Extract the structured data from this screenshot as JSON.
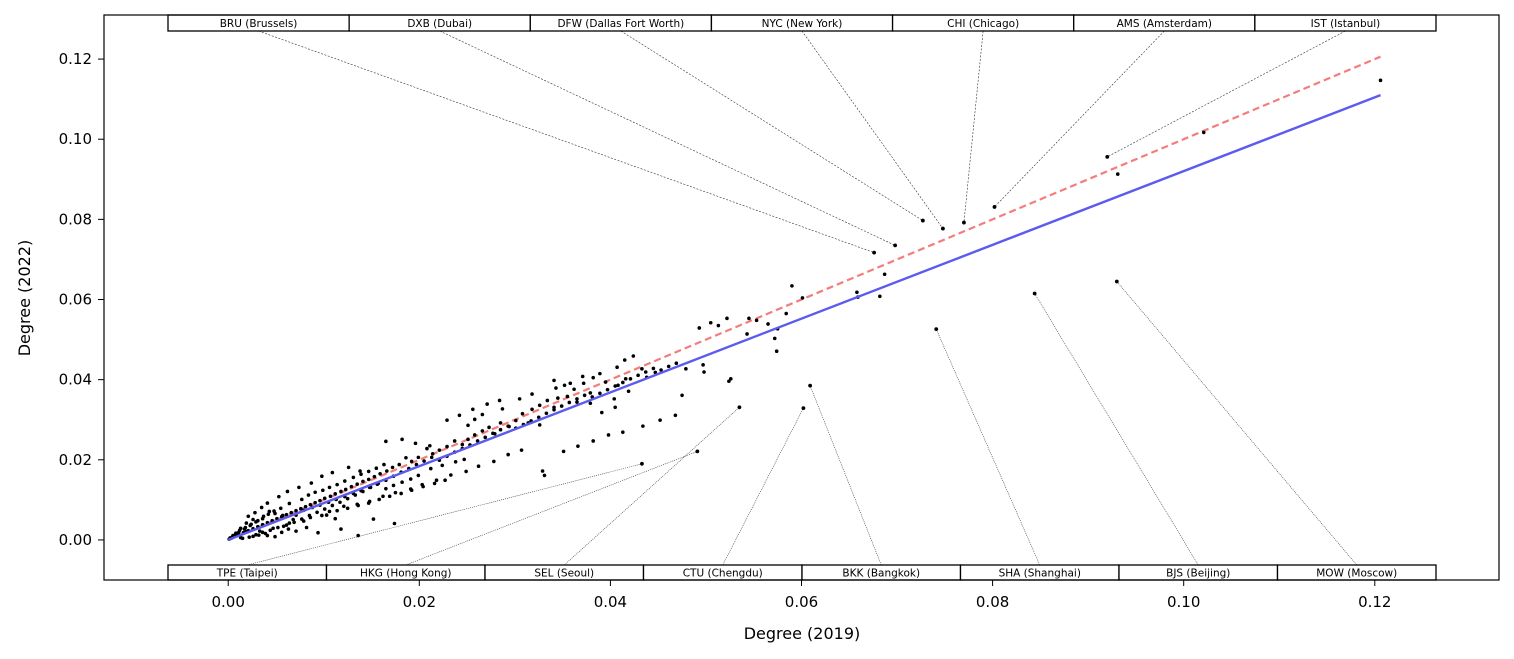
{
  "chart_data": {
    "type": "scatter",
    "title": "",
    "xlabel": "Degree (2019)",
    "ylabel": "Degree (2022)",
    "xlim": [
      -0.013,
      0.133
    ],
    "ylim": [
      -0.01,
      0.131
    ],
    "x_ticks": [
      0.0,
      0.02,
      0.04,
      0.06,
      0.08,
      0.1,
      0.12
    ],
    "x_tick_labels": [
      "0.00",
      "0.02",
      "0.04",
      "0.06",
      "0.08",
      "0.10",
      "0.12"
    ],
    "y_ticks": [
      0.0,
      0.02,
      0.04,
      0.06,
      0.08,
      0.1,
      0.12
    ],
    "y_tick_labels": [
      "0.00",
      "0.02",
      "0.04",
      "0.06",
      "0.08",
      "0.10",
      "0.12"
    ],
    "grid": false,
    "colors": {
      "points": "#000000",
      "fit_line": "#5b5bf0",
      "identity_line": "#f47c7c",
      "leader": "#333333"
    },
    "lines": [
      {
        "style": "dashed",
        "color": "#f47c7c",
        "x": [
          0.0,
          0.1206
        ],
        "y": [
          0.0,
          0.1206
        ]
      },
      {
        "style": "solid",
        "color": "#5b5bf0",
        "x": [
          0.0,
          0.1206
        ],
        "y": [
          0.0,
          0.111
        ]
      }
    ],
    "labeled_points": [
      {
        "label": "BRU (Brussels)",
        "x": 0.0676,
        "y": 0.0717,
        "position": "top"
      },
      {
        "label": "DXB (Dubai)",
        "x": 0.0698,
        "y": 0.0735,
        "position": "top"
      },
      {
        "label": "DFW (Dallas Fort Worth)",
        "x": 0.0727,
        "y": 0.0797,
        "position": "top"
      },
      {
        "label": "NYC (New York)",
        "x": 0.0748,
        "y": 0.0777,
        "position": "top"
      },
      {
        "label": "CHI (Chicago)",
        "x": 0.077,
        "y": 0.0792,
        "position": "top"
      },
      {
        "label": "AMS (Amsterdam)",
        "x": 0.0802,
        "y": 0.0831,
        "position": "top"
      },
      {
        "label": "IST (Istanbul)",
        "x": 0.092,
        "y": 0.0956,
        "position": "top"
      },
      {
        "label": "TPE (Taipei)",
        "x": 0.0433,
        "y": 0.019,
        "position": "bottom"
      },
      {
        "label": "HKG (Hong Kong)",
        "x": 0.0491,
        "y": 0.0221,
        "position": "bottom"
      },
      {
        "label": "SEL (Seoul)",
        "x": 0.0535,
        "y": 0.0331,
        "position": "bottom"
      },
      {
        "label": "CTU (Chengdu)",
        "x": 0.0602,
        "y": 0.0329,
        "position": "bottom"
      },
      {
        "label": "BKK (Bangkok)",
        "x": 0.0609,
        "y": 0.0385,
        "position": "bottom"
      },
      {
        "label": "SHA (Shanghai)",
        "x": 0.0741,
        "y": 0.0526,
        "position": "bottom"
      },
      {
        "label": "BJS (Beijing)",
        "x": 0.0844,
        "y": 0.0615,
        "position": "bottom"
      },
      {
        "label": "MOW (Moscow)",
        "x": 0.093,
        "y": 0.0645,
        "position": "bottom"
      }
    ],
    "points": [
      [
        0.1206,
        0.1147
      ],
      [
        0.1021,
        0.1017
      ],
      [
        0.0931,
        0.0913
      ],
      [
        0.0687,
        0.0663
      ],
      [
        0.0658,
        0.0618
      ],
      [
        0.0659,
        0.0606
      ],
      [
        0.0682,
        0.0608
      ],
      [
        0.059,
        0.0634
      ],
      [
        0.0601,
        0.0604
      ],
      [
        0.0584,
        0.0565
      ],
      [
        0.0553,
        0.0548
      ],
      [
        0.0565,
        0.0539
      ],
      [
        0.0545,
        0.0553
      ],
      [
        0.0522,
        0.0553
      ],
      [
        0.0575,
        0.0527
      ],
      [
        0.0543,
        0.0514
      ],
      [
        0.0572,
        0.0503
      ],
      [
        0.0574,
        0.0471
      ],
      [
        0.0505,
        0.0542
      ],
      [
        0.0493,
        0.0529
      ],
      [
        0.0513,
        0.0535
      ],
      [
        0.0498,
        0.0419
      ],
      [
        0.0497,
        0.0437
      ],
      [
        0.0526,
        0.0402
      ],
      [
        0.0524,
        0.0396
      ],
      [
        0.0479,
        0.0427
      ],
      [
        0.0475,
        0.0361
      ],
      [
        0.0424,
        0.0459
      ],
      [
        0.0415,
        0.0449
      ],
      [
        0.0433,
        0.0427
      ],
      [
        0.0447,
        0.0418
      ],
      [
        0.0438,
        0.0406
      ],
      [
        0.0416,
        0.0402
      ],
      [
        0.0395,
        0.0394
      ],
      [
        0.0408,
        0.0386
      ],
      [
        0.0419,
        0.0371
      ],
      [
        0.0382,
        0.0405
      ],
      [
        0.0372,
        0.0391
      ],
      [
        0.0362,
        0.0376
      ],
      [
        0.0379,
        0.0367
      ],
      [
        0.0355,
        0.0358
      ],
      [
        0.0365,
        0.0344
      ],
      [
        0.0345,
        0.0354
      ],
      [
        0.0334,
        0.0348
      ],
      [
        0.0326,
        0.0336
      ],
      [
        0.0341,
        0.0331
      ],
      [
        0.0318,
        0.0326
      ],
      [
        0.0308,
        0.0315
      ],
      [
        0.0301,
        0.0298
      ],
      [
        0.0314,
        0.0292
      ],
      [
        0.0326,
        0.0287
      ],
      [
        0.0294,
        0.0283
      ],
      [
        0.0285,
        0.0292
      ],
      [
        0.0273,
        0.0281
      ],
      [
        0.0266,
        0.0272
      ],
      [
        0.0279,
        0.0265
      ],
      [
        0.0258,
        0.0262
      ],
      [
        0.0251,
        0.0251
      ],
      [
        0.0245,
        0.0238
      ],
      [
        0.0237,
        0.0247
      ],
      [
        0.0229,
        0.0233
      ],
      [
        0.0221,
        0.0224
      ],
      [
        0.0214,
        0.0215
      ],
      [
        0.0208,
        0.0228
      ],
      [
        0.0199,
        0.0206
      ],
      [
        0.0192,
        0.0196
      ],
      [
        0.0186,
        0.0205
      ],
      [
        0.0179,
        0.0188
      ],
      [
        0.0172,
        0.0181
      ],
      [
        0.0166,
        0.0172
      ],
      [
        0.0159,
        0.0165
      ],
      [
        0.0153,
        0.0158
      ],
      [
        0.0147,
        0.0151
      ],
      [
        0.0141,
        0.0146
      ],
      [
        0.0135,
        0.0139
      ],
      [
        0.0129,
        0.0133
      ],
      [
        0.0123,
        0.0126
      ],
      [
        0.0118,
        0.0121
      ],
      [
        0.0112,
        0.0115
      ],
      [
        0.0107,
        0.0109
      ],
      [
        0.0101,
        0.0104
      ],
      [
        0.0096,
        0.0098
      ],
      [
        0.0091,
        0.0093
      ],
      [
        0.0086,
        0.0088
      ],
      [
        0.0081,
        0.0083
      ],
      [
        0.0076,
        0.0078
      ],
      [
        0.0071,
        0.0073
      ],
      [
        0.0066,
        0.0068
      ],
      [
        0.0061,
        0.0063
      ],
      [
        0.0056,
        0.0058
      ],
      [
        0.0051,
        0.0053
      ],
      [
        0.0046,
        0.0048
      ],
      [
        0.0041,
        0.0043
      ],
      [
        0.0036,
        0.0038
      ],
      [
        0.0031,
        0.0033
      ],
      [
        0.0026,
        0.0028
      ],
      [
        0.0021,
        0.0023
      ],
      [
        0.0016,
        0.0018
      ],
      [
        0.0011,
        0.0013
      ],
      [
        0.0006,
        0.0008
      ],
      [
        0.0003,
        0.0004
      ],
      [
        0.0001,
        0.0002
      ],
      [
        0.0165,
        0.0246
      ],
      [
        0.0182,
        0.0251
      ],
      [
        0.0196,
        0.0241
      ],
      [
        0.0211,
        0.0235
      ],
      [
        0.0126,
        0.0181
      ],
      [
        0.0138,
        0.0172
      ],
      [
        0.0109,
        0.0168
      ],
      [
        0.0098,
        0.0159
      ],
      [
        0.0087,
        0.0142
      ],
      [
        0.0074,
        0.0131
      ],
      [
        0.0062,
        0.0121
      ],
      [
        0.0053,
        0.0108
      ],
      [
        0.0041,
        0.0092
      ],
      [
        0.0035,
        0.0081
      ],
      [
        0.0028,
        0.0068
      ],
      [
        0.0021,
        0.0059
      ],
      [
        0.0152,
        0.0052
      ],
      [
        0.0174,
        0.0041
      ],
      [
        0.0136,
        0.0011
      ],
      [
        0.0118,
        0.0027
      ],
      [
        0.0094,
        0.0018
      ],
      [
        0.0082,
        0.0031
      ],
      [
        0.0071,
        0.0022
      ],
      [
        0.0064,
        0.0042
      ],
      [
        0.0058,
        0.0034
      ],
      [
        0.0047,
        0.0029
      ],
      [
        0.0039,
        0.0016
      ],
      [
        0.0032,
        0.0012
      ],
      [
        0.0026,
        0.0009
      ],
      [
        0.0019,
        0.0021
      ],
      [
        0.0013,
        0.0006
      ],
      [
        0.0009,
        0.0014
      ],
      [
        0.0148,
        0.0096
      ],
      [
        0.0162,
        0.0109
      ],
      [
        0.0175,
        0.0118
      ],
      [
        0.0191,
        0.0127
      ],
      [
        0.0203,
        0.0138
      ],
      [
        0.0218,
        0.0149
      ],
      [
        0.0233,
        0.0162
      ],
      [
        0.0249,
        0.0171
      ],
      [
        0.0262,
        0.0184
      ],
      [
        0.0278,
        0.0196
      ],
      [
        0.0293,
        0.0213
      ],
      [
        0.0307,
        0.0224
      ],
      [
        0.0331,
        0.0161
      ],
      [
        0.0329,
        0.0172
      ],
      [
        0.0351,
        0.0221
      ],
      [
        0.0366,
        0.0234
      ],
      [
        0.0382,
        0.0247
      ],
      [
        0.0398,
        0.0262
      ],
      [
        0.0413,
        0.0269
      ],
      [
        0.0434,
        0.0284
      ],
      [
        0.0452,
        0.0299
      ],
      [
        0.0468,
        0.0311
      ],
      [
        0.0391,
        0.0318
      ],
      [
        0.0405,
        0.0331
      ],
      [
        0.0229,
        0.0299
      ],
      [
        0.0242,
        0.0311
      ],
      [
        0.0256,
        0.0326
      ],
      [
        0.0271,
        0.0339
      ],
      [
        0.0284,
        0.0348
      ],
      [
        0.0305,
        0.0352
      ],
      [
        0.0318,
        0.0364
      ],
      [
        0.0343,
        0.0379
      ],
      [
        0.0358,
        0.0391
      ],
      [
        0.0371,
        0.0408
      ],
      [
        0.0389,
        0.0415
      ],
      [
        0.0407,
        0.0431
      ],
      [
        0.0112,
        0.0053
      ],
      [
        0.0106,
        0.0071
      ],
      [
        0.0121,
        0.0084
      ],
      [
        0.0135,
        0.0089
      ],
      [
        0.0098,
        0.0061
      ],
      [
        0.0086,
        0.0056
      ],
      [
        0.0079,
        0.0047
      ],
      [
        0.0068,
        0.0051
      ],
      [
        0.0057,
        0.0061
      ],
      [
        0.0049,
        0.0066
      ],
      [
        0.0043,
        0.0071
      ],
      [
        0.0037,
        0.0059
      ],
      [
        0.0031,
        0.0048
      ],
      [
        0.0024,
        0.0039
      ],
      [
        0.0018,
        0.0031
      ],
      [
        0.0012,
        0.0024
      ],
      [
        0.0008,
        0.0017
      ],
      [
        0.0005,
        0.0011
      ],
      [
        0.0015,
        0.0004
      ],
      [
        0.0022,
        0.0007
      ],
      [
        0.0029,
        0.0013
      ],
      [
        0.0036,
        0.0019
      ],
      [
        0.0044,
        0.0024
      ],
      [
        0.0052,
        0.0031
      ],
      [
        0.0061,
        0.0037
      ],
      [
        0.0069,
        0.0044
      ],
      [
        0.0077,
        0.0052
      ],
      [
        0.0085,
        0.0061
      ],
      [
        0.0093,
        0.0069
      ],
      [
        0.0101,
        0.0077
      ],
      [
        0.0109,
        0.0086
      ],
      [
        0.0117,
        0.0094
      ],
      [
        0.0125,
        0.0103
      ],
      [
        0.0133,
        0.0112
      ],
      [
        0.0141,
        0.0121
      ],
      [
        0.0149,
        0.0131
      ],
      [
        0.0157,
        0.0141
      ],
      [
        0.0165,
        0.0149
      ],
      [
        0.0173,
        0.0159
      ],
      [
        0.0181,
        0.0169
      ],
      [
        0.0189,
        0.0178
      ],
      [
        0.0197,
        0.0188
      ],
      [
        0.0205,
        0.0197
      ],
      [
        0.0213,
        0.0206
      ],
      [
        0.0221,
        0.0199
      ],
      [
        0.0229,
        0.0209
      ],
      [
        0.0237,
        0.0219
      ],
      [
        0.0245,
        0.0228
      ],
      [
        0.0253,
        0.0237
      ],
      [
        0.0261,
        0.0247
      ],
      [
        0.0269,
        0.0256
      ],
      [
        0.0277,
        0.0266
      ],
      [
        0.0285,
        0.0275
      ],
      [
        0.0293,
        0.0284
      ],
      [
        0.0301,
        0.0279
      ],
      [
        0.0309,
        0.0288
      ],
      [
        0.0317,
        0.0297
      ],
      [
        0.0325,
        0.0306
      ],
      [
        0.0333,
        0.0316
      ],
      [
        0.0341,
        0.0325
      ],
      [
        0.0349,
        0.0334
      ],
      [
        0.0357,
        0.0343
      ],
      [
        0.0365,
        0.0352
      ],
      [
        0.0373,
        0.0361
      ],
      [
        0.0381,
        0.0357
      ],
      [
        0.0389,
        0.0366
      ],
      [
        0.0397,
        0.0375
      ],
      [
        0.0405,
        0.0384
      ],
      [
        0.0413,
        0.0393
      ],
      [
        0.0421,
        0.0402
      ],
      [
        0.0429,
        0.0411
      ],
      [
        0.0437,
        0.0419
      ],
      [
        0.0445,
        0.0428
      ],
      [
        0.0453,
        0.0424
      ],
      [
        0.0461,
        0.0433
      ],
      [
        0.0469,
        0.0441
      ],
      [
        0.0077,
        0.0101
      ],
      [
        0.0084,
        0.0112
      ],
      [
        0.0091,
        0.0119
      ],
      [
        0.0099,
        0.0124
      ],
      [
        0.0064,
        0.0091
      ],
      [
        0.0055,
        0.0079
      ],
      [
        0.0048,
        0.0072
      ],
      [
        0.0042,
        0.0064
      ],
      [
        0.0036,
        0.0053
      ],
      [
        0.0029,
        0.0045
      ],
      [
        0.0023,
        0.0036
      ],
      [
        0.0017,
        0.0027
      ],
      [
        0.0011,
        0.0019
      ],
      [
        0.0007,
        0.0012
      ],
      [
        0.0004,
        0.0007
      ],
      [
        0.0002,
        0.0005
      ],
      [
        0.0106,
        0.0131
      ],
      [
        0.0114,
        0.0138
      ],
      [
        0.0122,
        0.0147
      ],
      [
        0.0131,
        0.0156
      ],
      [
        0.0139,
        0.0164
      ],
      [
        0.0147,
        0.0171
      ],
      [
        0.0155,
        0.0179
      ],
      [
        0.0163,
        0.0188
      ],
      [
        0.0103,
        0.0062
      ],
      [
        0.0114,
        0.0073
      ],
      [
        0.0125,
        0.0079
      ],
      [
        0.0136,
        0.0086
      ],
      [
        0.0147,
        0.0092
      ],
      [
        0.0158,
        0.0101
      ],
      [
        0.0169,
        0.0109
      ],
      [
        0.0181,
        0.0116
      ],
      [
        0.0192,
        0.0124
      ],
      [
        0.0204,
        0.0133
      ],
      [
        0.0216,
        0.0141
      ],
      [
        0.0227,
        0.0149
      ],
      [
        0.0258,
        0.0301
      ],
      [
        0.0251,
        0.0286
      ],
      [
        0.0266,
        0.0313
      ],
      [
        0.0287,
        0.0327
      ],
      [
        0.0341,
        0.0398
      ],
      [
        0.0352,
        0.0386
      ],
      [
        0.0379,
        0.0341
      ],
      [
        0.0404,
        0.0352
      ],
      [
        0.0212,
        0.0178
      ],
      [
        0.0224,
        0.0186
      ],
      [
        0.0238,
        0.0195
      ],
      [
        0.0247,
        0.0201
      ],
      [
        0.0013,
        0.0029
      ],
      [
        0.0019,
        0.0042
      ],
      [
        0.0026,
        0.0051
      ],
      [
        0.0033,
        0.0022
      ],
      [
        0.0041,
        0.0011
      ],
      [
        0.0049,
        0.0008
      ],
      [
        0.0056,
        0.0019
      ],
      [
        0.0063,
        0.0027
      ],
      [
        0.0071,
        0.0062
      ],
      [
        0.0079,
        0.0074
      ],
      [
        0.0088,
        0.0081
      ],
      [
        0.0096,
        0.0087
      ],
      [
        0.0105,
        0.0094
      ],
      [
        0.0113,
        0.0101
      ],
      [
        0.0122,
        0.0108
      ],
      [
        0.0131,
        0.0116
      ],
      [
        0.0139,
        0.0123
      ],
      [
        0.0148,
        0.0131
      ],
      [
        0.0156,
        0.0139
      ],
      [
        0.0165,
        0.0128
      ],
      [
        0.0173,
        0.0136
      ],
      [
        0.0182,
        0.0144
      ],
      [
        0.0191,
        0.0152
      ],
      [
        0.0199,
        0.0161
      ]
    ]
  }
}
